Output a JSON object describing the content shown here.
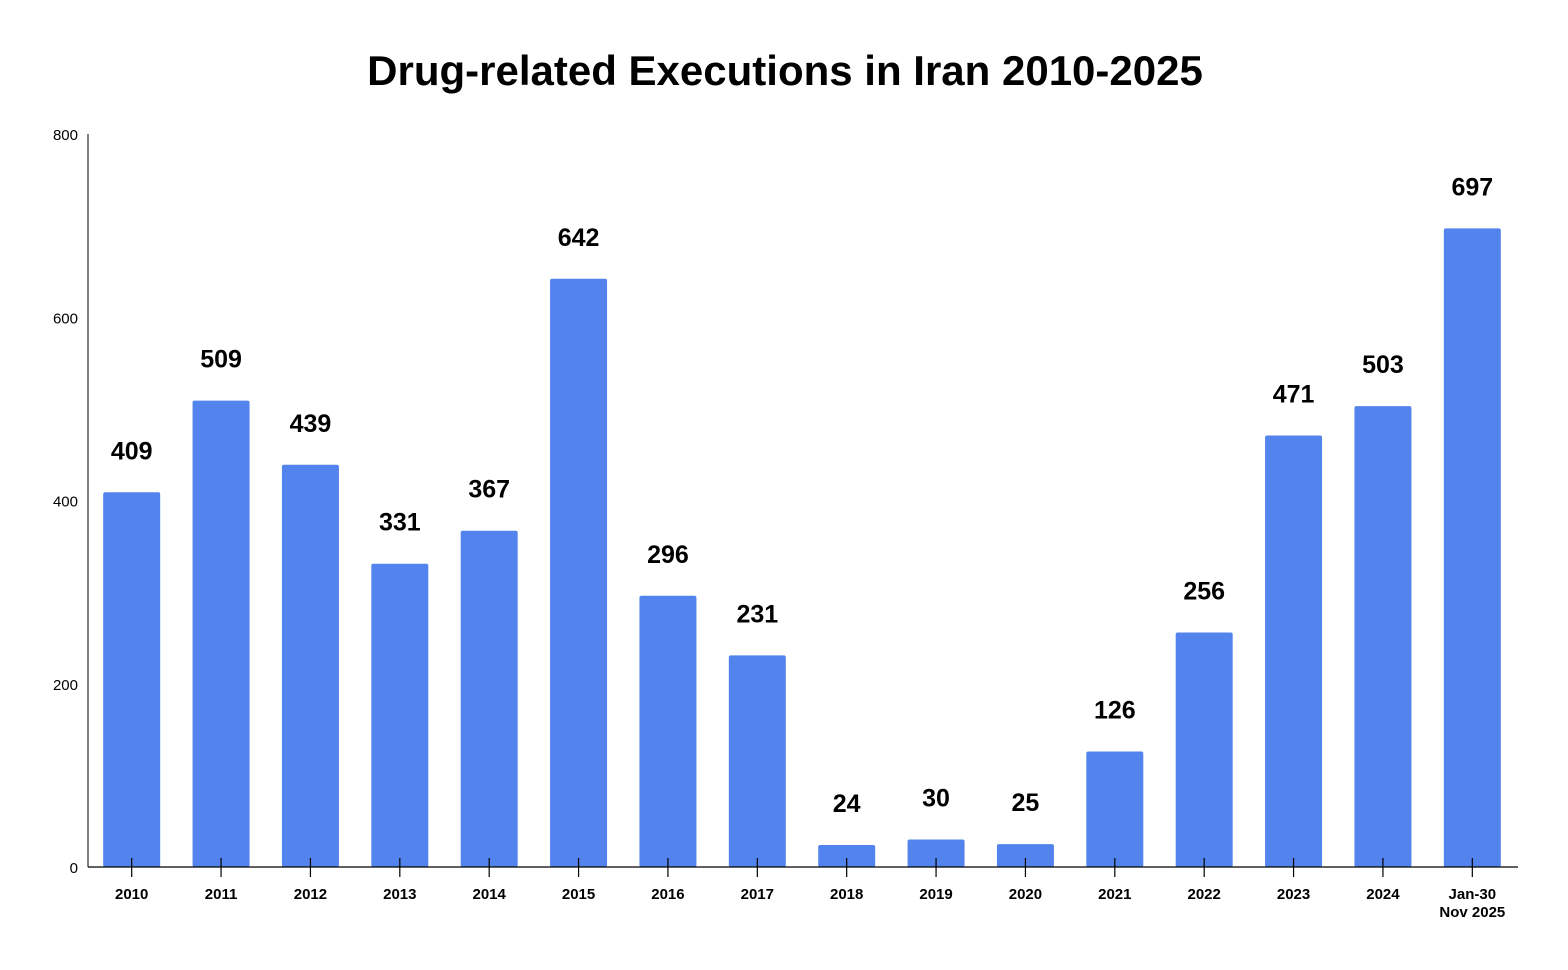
{
  "chart_data": {
    "type": "bar",
    "title": "Drug-related Executions in Iran 2010-2025",
    "xlabel": "",
    "ylabel": "",
    "categories": [
      "2010",
      "2011",
      "2012",
      "2013",
      "2014",
      "2015",
      "2016",
      "2017",
      "2018",
      "2019",
      "2020",
      "2021",
      "2022",
      "2023",
      "2024",
      "Jan-30 Nov 2025"
    ],
    "category_lines": [
      [
        "2010"
      ],
      [
        "2011"
      ],
      [
        "2012"
      ],
      [
        "2013"
      ],
      [
        "2014"
      ],
      [
        "2015"
      ],
      [
        "2016"
      ],
      [
        "2017"
      ],
      [
        "2018"
      ],
      [
        "2019"
      ],
      [
        "2020"
      ],
      [
        "2021"
      ],
      [
        "2022"
      ],
      [
        "2023"
      ],
      [
        "2024"
      ],
      [
        "Jan-30",
        "Nov 2025"
      ]
    ],
    "values": [
      409,
      509,
      439,
      331,
      367,
      642,
      296,
      231,
      24,
      30,
      25,
      126,
      256,
      471,
      503,
      697
    ],
    "ylim": [
      0,
      800
    ],
    "yticks": [
      0,
      200,
      400,
      600,
      800
    ],
    "grid": false,
    "legend": "none",
    "bar_color": "#5383EC"
  }
}
